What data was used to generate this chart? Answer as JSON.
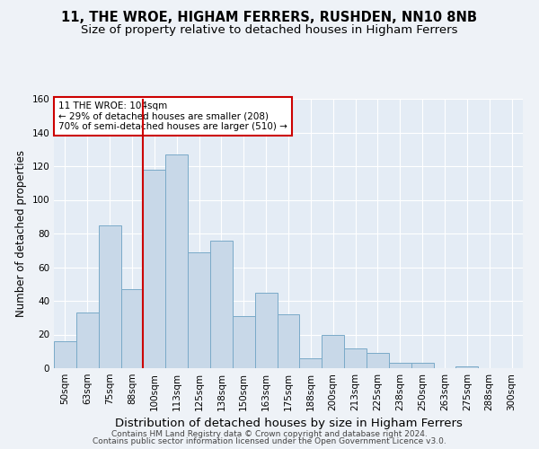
{
  "title1": "11, THE WROE, HIGHAM FERRERS, RUSHDEN, NN10 8NB",
  "title2": "Size of property relative to detached houses in Higham Ferrers",
  "xlabel": "Distribution of detached houses by size in Higham Ferrers",
  "ylabel": "Number of detached properties",
  "categories": [
    "50sqm",
    "63sqm",
    "75sqm",
    "88sqm",
    "100sqm",
    "113sqm",
    "125sqm",
    "138sqm",
    "150sqm",
    "163sqm",
    "175sqm",
    "188sqm",
    "200sqm",
    "213sqm",
    "225sqm",
    "238sqm",
    "250sqm",
    "263sqm",
    "275sqm",
    "288sqm",
    "300sqm"
  ],
  "values": [
    16,
    33,
    85,
    47,
    118,
    127,
    69,
    76,
    31,
    45,
    32,
    6,
    20,
    12,
    9,
    3,
    3,
    0,
    1,
    0,
    0
  ],
  "bar_color": "#c8d8e8",
  "bar_edge_color": "#7aaac8",
  "vline_pos": 3.5,
  "vline_color": "#cc0000",
  "annotation_line1": "11 THE WROE: 104sqm",
  "annotation_line2": "← 29% of detached houses are smaller (208)",
  "annotation_line3": "70% of semi-detached houses are larger (510) →",
  "annotation_box_color": "#cc0000",
  "ylim": [
    0,
    160
  ],
  "yticks": [
    0,
    20,
    40,
    60,
    80,
    100,
    120,
    140,
    160
  ],
  "footer1": "Contains HM Land Registry data © Crown copyright and database right 2024.",
  "footer2": "Contains public sector information licensed under the Open Government Licence v3.0.",
  "bg_color": "#eef2f7",
  "plot_bg_color": "#e4ecf5",
  "grid_color": "#ffffff",
  "title1_fontsize": 10.5,
  "title2_fontsize": 9.5,
  "xlabel_fontsize": 9.5,
  "ylabel_fontsize": 8.5,
  "tick_fontsize": 7.5,
  "footer_fontsize": 6.5
}
